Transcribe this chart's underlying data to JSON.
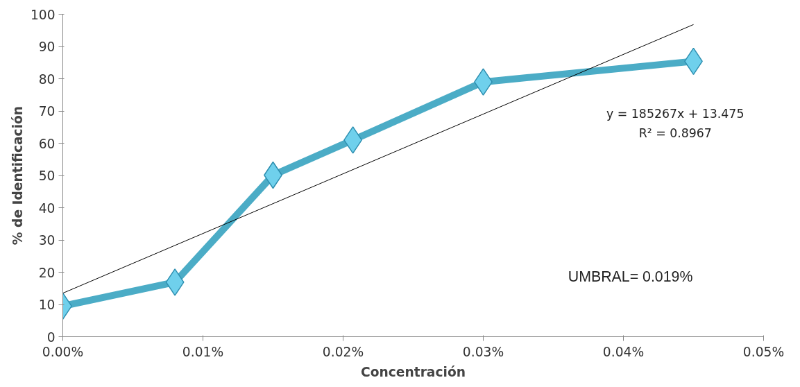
{
  "chart_data": {
    "type": "line",
    "xlabel": "Concentración",
    "ylabel": "% de Identificación",
    "xlim": [
      0,
      0.05
    ],
    "xticks": [
      {
        "value": 0,
        "label": "0.00%"
      },
      {
        "value": 0.01,
        "label": "0.01%"
      },
      {
        "value": 0.02,
        "label": "0.02%"
      },
      {
        "value": 0.03,
        "label": "0.03%"
      },
      {
        "value": 0.04,
        "label": "0.04%"
      },
      {
        "value": 0.05,
        "label": "0.05%"
      }
    ],
    "ylim": [
      0,
      100
    ],
    "yticks": [
      0,
      10,
      20,
      30,
      40,
      50,
      60,
      70,
      80,
      90,
      100
    ],
    "grid": false,
    "marker": "diamond",
    "line_style": "solid",
    "series": [
      {
        "color": "#4bacc6",
        "x": [
          0,
          0.008,
          0.015,
          0.0207,
          0.03,
          0.045
        ],
        "values": [
          9.5,
          16.9,
          50.1,
          61,
          79,
          85.4
        ]
      },
      {
        "color": "#000000",
        "marker": "none",
        "x": [
          0,
          0.045
        ],
        "values": [
          13.5,
          96.8
        ]
      }
    ],
    "annotations": [
      "y = 185267x + 13.475",
      "R² = 0.8967",
      "UMBRAL= 0.019%"
    ]
  }
}
